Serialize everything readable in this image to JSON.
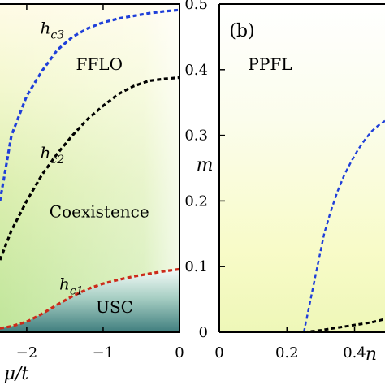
{
  "chart_data": [
    {
      "panel": "a",
      "type": "line",
      "xlabel": "μ/t",
      "x_ticks": [
        -2,
        -1,
        0
      ],
      "x_tick_labels": [
        "−2",
        "−1",
        "0"
      ],
      "xlim": [
        -2.35,
        0
      ],
      "ylim": [
        0,
        0.5
      ],
      "regions": [
        {
          "name": "FFLO",
          "x": -1.05,
          "y": 0.4
        },
        {
          "name": "Coexistence",
          "x": -1.05,
          "y": 0.175
        },
        {
          "name": "USC",
          "x": -0.85,
          "y": 0.03
        }
      ],
      "series": [
        {
          "name": "hc3",
          "color": "#1f3fd9",
          "label_at": [
            -1.9,
            0.455
          ],
          "x": [
            -2.35,
            -2.2,
            -2.0,
            -1.8,
            -1.6,
            -1.4,
            -1.2,
            -1.0,
            -0.8,
            -0.6,
            -0.4,
            -0.2,
            0.0
          ],
          "y": [
            0.2,
            0.3,
            0.36,
            0.398,
            0.43,
            0.45,
            0.463,
            0.472,
            0.478,
            0.482,
            0.486,
            0.489,
            0.491
          ]
        },
        {
          "name": "hc2",
          "color": "#000000",
          "label_at": [
            -1.9,
            0.265
          ],
          "x": [
            -2.35,
            -2.2,
            -2.0,
            -1.8,
            -1.6,
            -1.4,
            -1.2,
            -1.0,
            -0.8,
            -0.6,
            -0.4,
            -0.2,
            0.0
          ],
          "y": [
            0.11,
            0.155,
            0.2,
            0.24,
            0.272,
            0.3,
            0.325,
            0.345,
            0.363,
            0.375,
            0.383,
            0.386,
            0.388
          ]
        },
        {
          "name": "hc1",
          "color": "#cc2a1a",
          "label_at": [
            -1.65,
            0.065
          ],
          "x": [
            -2.35,
            -2.2,
            -2.0,
            -1.8,
            -1.6,
            -1.4,
            -1.2,
            -1.0,
            -0.8,
            -0.6,
            -0.4,
            -0.2,
            0.0
          ],
          "y": [
            0.006,
            0.009,
            0.016,
            0.028,
            0.042,
            0.055,
            0.066,
            0.074,
            0.08,
            0.085,
            0.089,
            0.093,
            0.096
          ]
        }
      ]
    },
    {
      "panel": "b",
      "type": "line",
      "tag": "(b)",
      "xlabel": "n",
      "ylabel": "m",
      "x_ticks": [
        0,
        0.2,
        0.4
      ],
      "x_tick_labels": [
        "0",
        "0.2",
        "0.4"
      ],
      "y_ticks": [
        0,
        0.1,
        0.2,
        0.3,
        0.4,
        0.5
      ],
      "y_tick_labels": [
        "0",
        "0.1",
        "0.2",
        "0.3",
        "0.4",
        "0.5"
      ],
      "xlim": [
        0,
        0.49
      ],
      "ylim": [
        0,
        0.5
      ],
      "regions": [
        {
          "name": "PPFL",
          "x": 0.15,
          "y": 0.4
        }
      ],
      "series": [
        {
          "name": "",
          "color": "#1f3fd9",
          "x": [
            0.25,
            0.27,
            0.29,
            0.31,
            0.33,
            0.35,
            0.37,
            0.39,
            0.41,
            0.43,
            0.45,
            0.47,
            0.49
          ],
          "y": [
            0.0,
            0.05,
            0.1,
            0.15,
            0.185,
            0.215,
            0.24,
            0.26,
            0.278,
            0.293,
            0.306,
            0.315,
            0.322
          ]
        },
        {
          "name": "",
          "color": "#000000",
          "x": [
            0.25,
            0.3,
            0.35,
            0.4,
            0.45,
            0.49
          ],
          "y": [
            0.0,
            0.003,
            0.007,
            0.011,
            0.015,
            0.02
          ]
        }
      ]
    }
  ]
}
